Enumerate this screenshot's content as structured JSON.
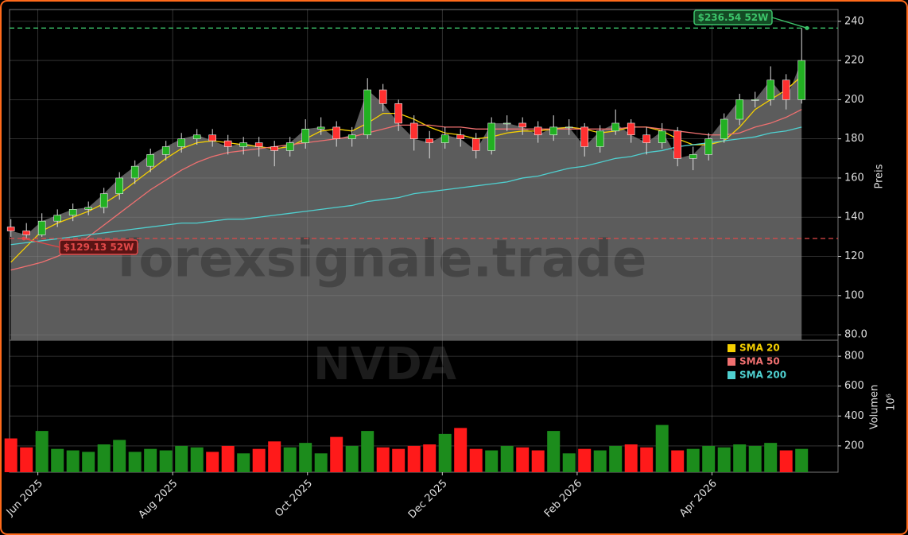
{
  "chart_data": [
    {
      "type": "candlestick",
      "ylabel": "Preis",
      "watermark": "forexsignale.trade",
      "x": [
        5.6,
        5.83,
        6.06,
        6.29,
        6.52,
        6.75,
        6.98,
        7.21,
        7.44,
        7.67,
        7.9,
        8.13,
        8.36,
        8.59,
        8.82,
        9.05,
        9.28,
        9.51,
        9.74,
        9.97,
        10.2,
        10.43,
        10.66,
        10.89,
        11.12,
        11.35,
        11.58,
        11.81,
        12.04,
        12.27,
        12.5,
        12.73,
        12.96,
        13.19,
        13.42,
        13.65,
        13.88,
        14.11,
        14.34,
        14.57,
        14.8,
        15.03,
        15.26,
        15.49,
        15.72,
        15.95,
        16.18,
        16.41,
        16.64,
        16.87,
        17.1,
        17.33
      ],
      "open": [
        135,
        133,
        131,
        138,
        141,
        144,
        145,
        152,
        160,
        166,
        172,
        176,
        180,
        182,
        179,
        176,
        178,
        176,
        174,
        178,
        185,
        186,
        180,
        182,
        205,
        198,
        188,
        180,
        178,
        182,
        180,
        174,
        188,
        188,
        186,
        182,
        186,
        186,
        176,
        184,
        188,
        182,
        178,
        184,
        170,
        172,
        180,
        190,
        200,
        200,
        210,
        200
      ],
      "high": [
        139,
        137,
        142,
        144,
        147,
        148,
        155,
        163,
        169,
        175,
        179,
        183,
        185,
        185,
        182,
        181,
        181,
        179,
        181,
        190,
        191,
        189,
        186,
        211,
        208,
        200,
        192,
        184,
        186,
        185,
        183,
        191,
        192,
        191,
        189,
        192,
        190,
        188,
        187,
        195,
        190,
        186,
        188,
        186,
        176,
        183,
        193,
        203,
        204,
        217,
        213,
        236.54
      ],
      "low": [
        130,
        129.13,
        130,
        135,
        138,
        141,
        142,
        149,
        157,
        163,
        169,
        173,
        177,
        176,
        172,
        172,
        171,
        166,
        171,
        175,
        182,
        176,
        176,
        180,
        194,
        184,
        174,
        170,
        175,
        176,
        170,
        172,
        184,
        182,
        178,
        179,
        182,
        171,
        173,
        182,
        178,
        172,
        175,
        166,
        164,
        169,
        178,
        187,
        196,
        197,
        195,
        198
      ],
      "close": [
        133,
        131,
        138,
        141,
        144,
        145,
        152,
        160,
        166,
        172,
        176,
        180,
        182,
        179,
        176,
        178,
        176,
        174,
        178,
        185,
        186,
        180,
        182,
        205,
        198,
        188,
        180,
        178,
        182,
        180,
        174,
        188,
        188,
        186,
        182,
        186,
        186,
        176,
        184,
        188,
        182,
        178,
        184,
        170,
        172,
        180,
        190,
        200,
        200,
        210,
        200,
        220
      ],
      "up_color": "#22b022",
      "down_color": "#ff3030",
      "area_color": "#5c5c5c",
      "series": [
        {
          "name": "SMA 20",
          "color": "#f5d000",
          "values": [
            117,
            125,
            133,
            137,
            140,
            143,
            147,
            152,
            158,
            164,
            170,
            175,
            178,
            179,
            178,
            177,
            176,
            175,
            176,
            180,
            184,
            185,
            184,
            188,
            193,
            193,
            190,
            186,
            183,
            182,
            180,
            181,
            183,
            184,
            184,
            185,
            186,
            185,
            183,
            184,
            186,
            186,
            184,
            180,
            177,
            177,
            179,
            186,
            195,
            200,
            205,
            212
          ]
        },
        {
          "name": "SMA 50",
          "color": "#f07070",
          "values": [
            113,
            115,
            117,
            120,
            124,
            130,
            136,
            142,
            148,
            154,
            159,
            164,
            168,
            171,
            173,
            174,
            175,
            176,
            177,
            178,
            179,
            180,
            181,
            183,
            185,
            187,
            187,
            187,
            186,
            186,
            185,
            185,
            185,
            185,
            185,
            185,
            185,
            185,
            185,
            185,
            186,
            186,
            185,
            184,
            183,
            182,
            182,
            183,
            186,
            188,
            191,
            195
          ]
        },
        {
          "name": "SMA 200",
          "color": "#4fd0d0",
          "values": [
            126,
            127,
            128,
            129,
            130,
            131,
            132,
            133,
            134,
            135,
            136,
            137,
            137,
            138,
            139,
            139,
            140,
            141,
            142,
            143,
            144,
            145,
            146,
            148,
            149,
            150,
            152,
            153,
            154,
            155,
            156,
            157,
            158,
            160,
            161,
            163,
            165,
            166,
            168,
            170,
            171,
            173,
            174,
            176,
            177,
            178,
            179,
            180,
            181,
            183,
            184,
            186
          ]
        }
      ],
      "annotations": [
        {
          "text": "$236.54 52W",
          "value": 236.54,
          "color": "#3cc46a"
        },
        {
          "text": "$129.13 52W",
          "value": 129.13,
          "color": "#e04848"
        }
      ],
      "ylim": [
        77.2,
        246
      ],
      "yticks": [
        {
          "value": 80,
          "label": "80.0"
        },
        100,
        120,
        140,
        160,
        180,
        200,
        220,
        240
      ],
      "grid": true
    },
    {
      "type": "bar",
      "ylabel": "Volumen",
      "offset_label": "10⁶",
      "watermark": "NVDA",
      "values": [
        250,
        190,
        300,
        180,
        170,
        160,
        210,
        240,
        160,
        180,
        170,
        200,
        190,
        160,
        200,
        150,
        180,
        230,
        190,
        220,
        150,
        260,
        200,
        300,
        190,
        180,
        200,
        210,
        280,
        320,
        180,
        170,
        200,
        190,
        170,
        300,
        150,
        180,
        170,
        200,
        210,
        190,
        340,
        170,
        180,
        200,
        190,
        210,
        200,
        220,
        170,
        180
      ],
      "xlim": [
        5.58,
        17.87
      ],
      "xticks": [
        {
          "value": 6,
          "label": "Jun 2025"
        },
        {
          "value": 8,
          "label": "Aug 2025"
        },
        {
          "value": 10,
          "label": "Oct 2025"
        },
        {
          "value": 12,
          "label": "Dec 2025"
        },
        {
          "value": 14,
          "label": "Feb 2026"
        },
        {
          "value": 16,
          "label": "Apr 2026"
        }
      ],
      "ylim": [
        24,
        907
      ],
      "yticks": [
        200,
        400,
        600,
        800
      ],
      "grid": true
    }
  ]
}
